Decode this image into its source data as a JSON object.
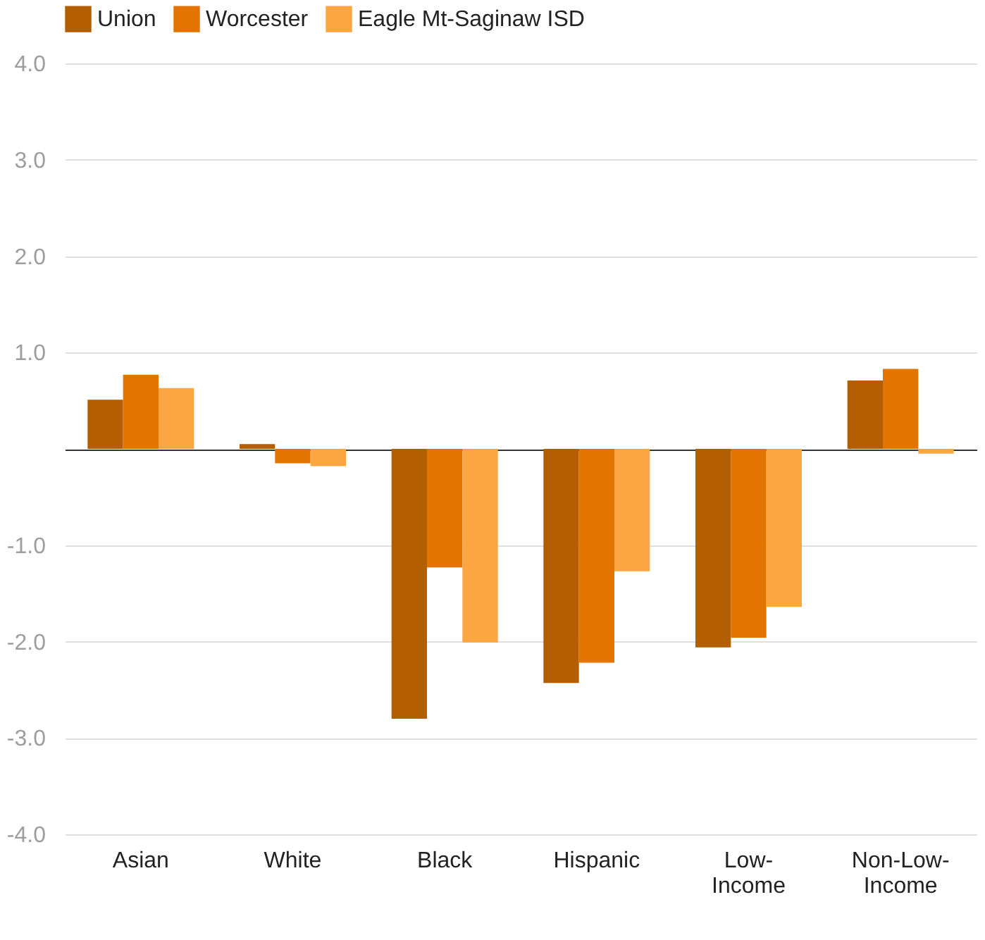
{
  "chart_data": {
    "type": "bar",
    "categories": [
      "Asian",
      "White",
      "Black",
      "Hispanic",
      "Low-Income",
      "Non-Low-Income"
    ],
    "series": [
      {
        "name": "Union",
        "color": "#b35e00",
        "values": [
          0.51,
          0.05,
          -2.8,
          -2.43,
          -2.06,
          0.71
        ]
      },
      {
        "name": "Worcester",
        "color": "#e37400",
        "values": [
          0.77,
          -0.15,
          -1.23,
          -2.22,
          -1.96,
          0.83
        ]
      },
      {
        "name": "Eagle Mt-Saginaw ISD",
        "color": "#fba543",
        "values": [
          0.63,
          -0.18,
          -2.01,
          -1.27,
          -1.64,
          -0.05
        ]
      }
    ],
    "ylim": [
      -4,
      4
    ],
    "yticks": [
      {
        "value": -4,
        "label": "-4.0"
      },
      {
        "value": -3,
        "label": "-3.0"
      },
      {
        "value": -2,
        "label": "-2.0"
      },
      {
        "value": -1,
        "label": "-1.0"
      },
      {
        "value": 0,
        "label": null
      },
      {
        "value": 1,
        "label": "1.0"
      },
      {
        "value": 2,
        "label": "2.0"
      },
      {
        "value": 3,
        "label": "3.0"
      },
      {
        "value": 4,
        "label": "4.0"
      }
    ],
    "grid": "y",
    "legend": "top left"
  }
}
